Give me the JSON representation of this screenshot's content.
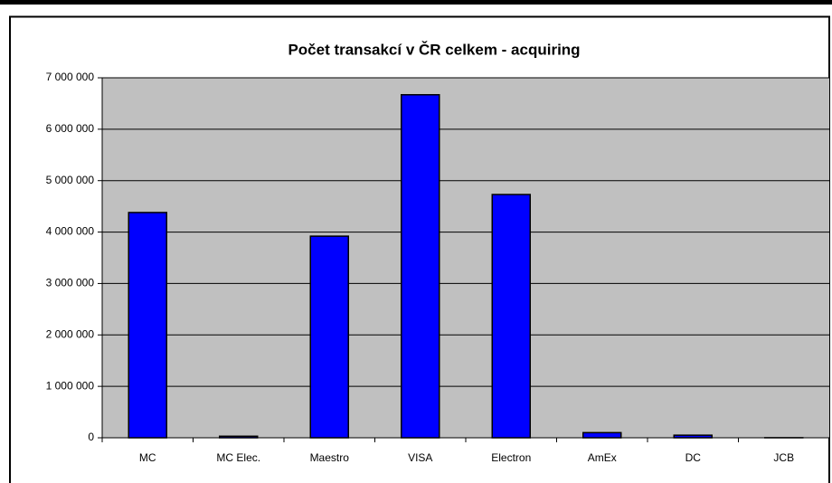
{
  "chart_data": {
    "type": "bar",
    "title": "Počet transakcí v ČR celkem - acquiring",
    "categories": [
      "MC",
      "MC Elec.",
      "Maestro",
      "VISA",
      "Electron",
      "AmEx",
      "DC",
      "JCB"
    ],
    "values": [
      4380000,
      30000,
      3920000,
      6670000,
      4730000,
      100000,
      50000,
      2000
    ],
    "color": "#0000ff",
    "ylim": [
      0,
      7000000
    ],
    "yticks": [
      0,
      {
        "value": 1000000,
        "label": "1 000 000"
      },
      {
        "value": 2000000,
        "label": "2 000 000"
      },
      {
        "value": 3000000,
        "label": "3 000 000"
      },
      {
        "value": 4000000,
        "label": "4 000 000"
      },
      {
        "value": 5000000,
        "label": "5 000 000"
      },
      {
        "value": 6000000,
        "label": "6 000 000"
      },
      {
        "value": 7000000,
        "label": "7 000 000"
      }
    ],
    "grid": true
  }
}
